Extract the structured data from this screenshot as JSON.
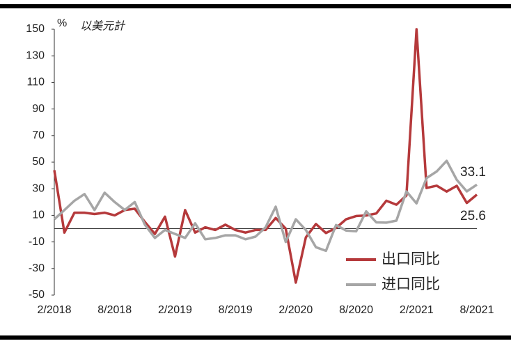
{
  "chart_data": {
    "type": "line",
    "unit": "%",
    "subtitle": "以美元計",
    "categories": [
      "2/2018",
      null,
      null,
      null,
      null,
      null,
      "8/2018",
      null,
      null,
      null,
      null,
      null,
      "2/2019",
      null,
      null,
      null,
      null,
      null,
      "8/2019",
      null,
      null,
      null,
      null,
      null,
      "2/2020",
      null,
      null,
      null,
      null,
      null,
      "8/2020",
      null,
      null,
      null,
      null,
      null,
      "2/2021",
      null,
      null,
      null,
      null,
      null,
      "8/2021"
    ],
    "series": [
      {
        "name": "出口同比",
        "color": "#b5393b",
        "values": [
          44,
          -3,
          12,
          12,
          11,
          12,
          10,
          14,
          15,
          5,
          -4,
          9,
          -21,
          14,
          -3,
          1,
          -1,
          3,
          -1,
          -3,
          -1,
          -1,
          8,
          0,
          -40.6,
          -6.6,
          3.5,
          -3.3,
          0.5,
          7,
          9.5,
          9.9,
          11.4,
          21,
          18,
          25,
          150,
          30.6,
          32.3,
          27.9,
          32.2,
          19.3,
          25.6
        ]
      },
      {
        "name": "进口同比",
        "color": "#a6a6a6",
        "values": [
          7,
          14,
          21,
          26,
          14,
          27,
          20,
          14,
          20,
          3,
          -7,
          -1,
          -4,
          -7,
          4,
          -8,
          -7,
          -5,
          -5,
          -8,
          -6,
          1,
          16.5,
          -10,
          7,
          -1,
          -14,
          -16.7,
          2.7,
          -1.4,
          -2,
          13,
          4.7,
          4.5,
          6,
          28,
          19,
          38,
          43,
          51,
          36.7,
          28,
          33.1
        ]
      }
    ],
    "end_labels": [
      "25.6",
      "33.1"
    ],
    "ylim": [
      -50,
      150
    ],
    "yticks": [
      -50,
      -30,
      -10,
      10,
      30,
      50,
      70,
      90,
      110,
      130,
      150
    ],
    "grid": false
  }
}
